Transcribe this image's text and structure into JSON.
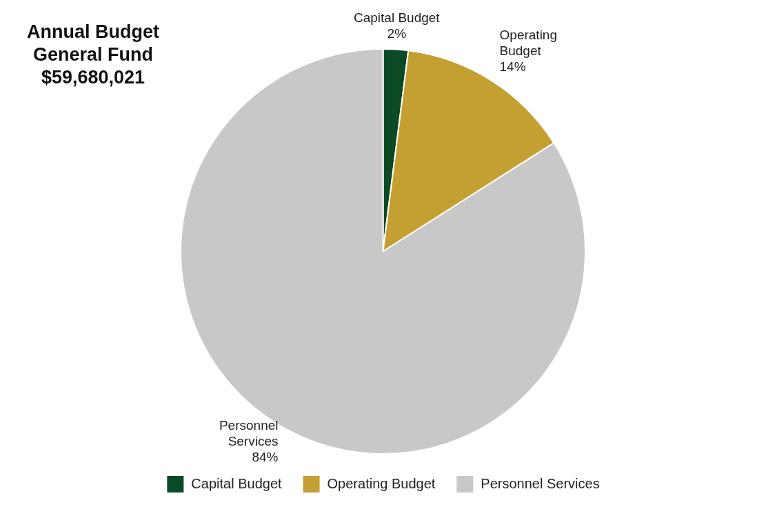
{
  "chart_data": {
    "type": "pie",
    "title": "Annual Budget General Fund",
    "subtitle": "$59,680,021",
    "categories": [
      "Capital Budget",
      "Operating Budget",
      "Personnel Services"
    ],
    "values": [
      2,
      14,
      84
    ],
    "value_labels": [
      "2%",
      "14%",
      "84%"
    ],
    "colors": [
      "#0b4a24",
      "#c4a032",
      "#c8c8c8"
    ],
    "legend": "bottom"
  }
}
